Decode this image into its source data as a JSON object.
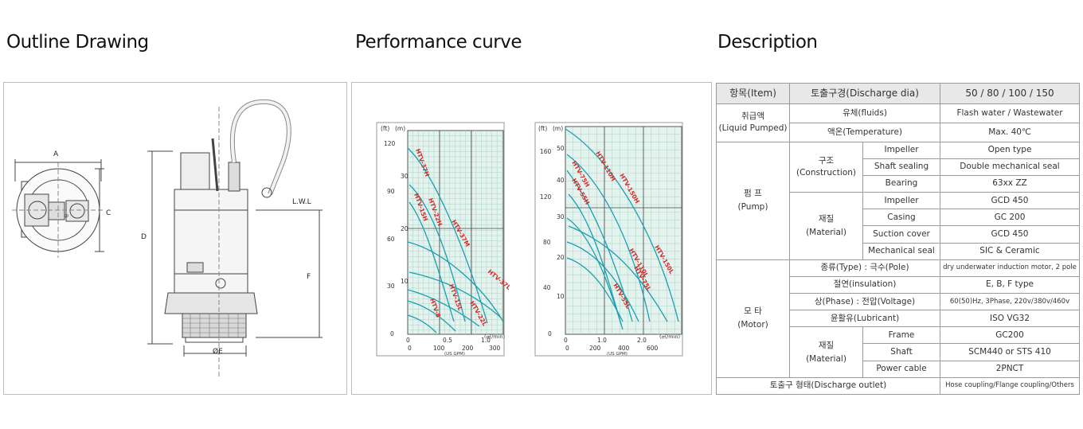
{
  "sections": {
    "outline_title": "Outline Drawing",
    "performance_title": "Performance curve",
    "description_title": "Description"
  },
  "outline": {
    "dim_A": "A",
    "dim_B": "B",
    "dim_C": "C",
    "dim_D": "D",
    "dim_E": "ØE",
    "dim_F": "F",
    "lwl": "L.W.L"
  },
  "performance": {
    "left_chart": {
      "unit_ft": "(ft)",
      "unit_m": "(m)",
      "unit_flow": "(㎥/min)",
      "unit_gpm": "(US GPM)",
      "ft_ticks": [
        "120",
        "90",
        "60",
        "30",
        "0"
      ],
      "m_ticks": [
        "30",
        "20",
        "10"
      ],
      "x_ticks": [
        "0",
        "0.5",
        "1.0"
      ],
      "gpm_ticks": [
        "0",
        "100",
        "200",
        "300"
      ],
      "curves": [
        "HTV-37H",
        "HTV-22H",
        "HTV-15H",
        "HTV-37M",
        "HTV-37L",
        "HTV-22L",
        "HTV-15L",
        "HTV-8"
      ]
    },
    "right_chart": {
      "unit_ft": "(ft)",
      "unit_m": "(m)",
      "unit_flow": "(㎥/min)",
      "unit_gpm": "(US GPM)",
      "ft_ticks": [
        "160",
        "120",
        "80",
        "40",
        "0"
      ],
      "m_ticks": [
        "50",
        "40",
        "30",
        "20",
        "10"
      ],
      "x_ticks": [
        "0",
        "1.0",
        "2.0"
      ],
      "gpm_ticks": [
        "0",
        "200",
        "400",
        "600"
      ],
      "curves": [
        "HTV-75H",
        "HTV-55H",
        "HTV-110H",
        "HTV-150H",
        "HTV-150L",
        "HTV-110L",
        "HTV-75L",
        "HTV-55L"
      ]
    }
  },
  "description": {
    "header": {
      "item": "항목(Item)",
      "discharge": "토출구경(Discharge dia)",
      "sizes": "50 / 80 / 100 / 150"
    },
    "liquid": {
      "label_ko": "취급액",
      "label_en": "(Liquid Pumped)",
      "fluids_label": "유체(fluids)",
      "fluids_value": "Flash water / Wastewater",
      "temp_label": "액온(Temperature)",
      "temp_value": "Max. 40℃"
    },
    "pump": {
      "label_ko": "펌 프",
      "label_en": "(Pump)",
      "construction_ko": "구조",
      "construction_en": "(Construction)",
      "impeller_label": "Impeller",
      "impeller_value": "Open type",
      "shaft_seal_label": "Shaft sealing",
      "shaft_seal_value": "Double mechanical seal",
      "bearing_label": "Bearing",
      "bearing_value": "63xx ZZ",
      "material_ko": "재질",
      "material_en": "(Material)",
      "m_impeller_label": "Impeller",
      "m_impeller_value": "GCD 450",
      "casing_label": "Casing",
      "casing_value": "GC 200",
      "suction_label": "Suction cover",
      "suction_value": "GCD 450",
      "mech_seal_label": "Mechanical seal",
      "mech_seal_value": "SIC & Ceramic"
    },
    "motor": {
      "label_ko": "모 타",
      "label_en": "(Motor)",
      "type_label": "종류(Type) : 극수(Pole)",
      "type_value": "dry underwater induction motor, 2 pole",
      "insulation_label": "절연(insulation)",
      "insulation_value": "E, B, F type",
      "phase_label": "상(Phase) : 전압(Voltage)",
      "phase_value": "60(50)Hz, 3Phase, 220v/380v/460v",
      "lubricant_label": "윤활유(Lubricant)",
      "lubricant_value": "ISO VG32",
      "material_ko": "재질",
      "material_en": "(Material)",
      "frame_label": "Frame",
      "frame_value": "GC200",
      "shaft_label": "Shaft",
      "shaft_value": "SCM440 or STS 410",
      "cable_label": "Power cable",
      "cable_value": "2PNCT"
    },
    "outlet": {
      "label": "토출구 형태(Discharge outlet)",
      "value": "Hose coupling/Flange coupling/Others"
    }
  }
}
